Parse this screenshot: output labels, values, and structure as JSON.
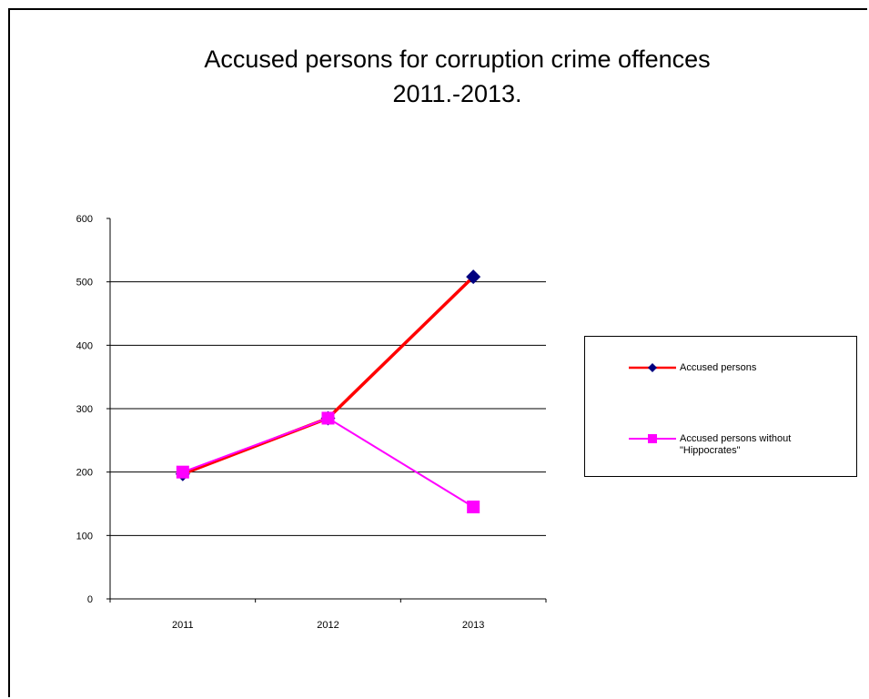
{
  "chart_data": {
    "type": "line",
    "title": "Accused persons for corruption crime offences\n2011.-2013.",
    "title_lines": [
      "Accused persons for corruption crime offences",
      "2011.-2013."
    ],
    "categories": [
      "2011",
      "2012",
      "2013"
    ],
    "ylim": [
      0,
      600
    ],
    "yticks": [
      "0",
      "100",
      "200",
      "300",
      "400",
      "500",
      "600"
    ],
    "grid": true,
    "legend_position": "right",
    "series": [
      {
        "name": "Accused persons",
        "values": [
          197,
          285,
          508
        ],
        "color": "#ff0000",
        "marker": "diamond",
        "marker_color": "#000080"
      },
      {
        "name": "Accused persons without \"Hippocrates\"",
        "name_lines": [
          "Accused persons without",
          "\"Hippocrates\""
        ],
        "values": [
          200,
          285,
          145
        ],
        "color": "#ff00ff",
        "marker": "square",
        "marker_color": "#ff00ff"
      }
    ]
  }
}
